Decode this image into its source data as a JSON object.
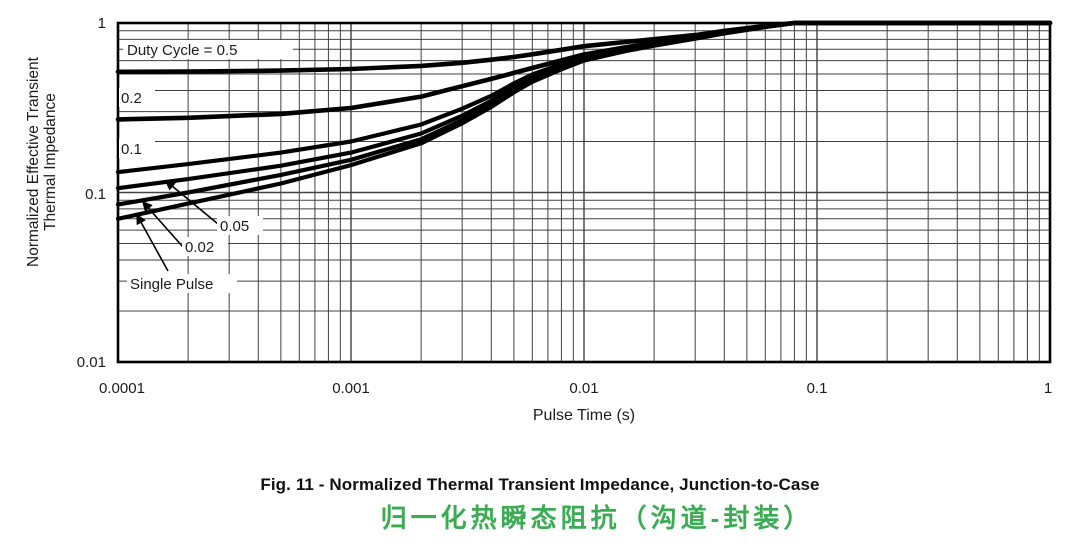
{
  "figure": {
    "caption_en": "Fig. 11 - Normalized Thermal Transient Impedance, Junction-to-Case",
    "caption_zh": "归一化热瞬态阻抗（沟道-封装）",
    "caption_zh_color": "#3BAC52"
  },
  "chart_data": {
    "type": "line",
    "title": "Normalized Thermal Transient Impedance, Junction-to-Case",
    "xlabel": "Pulse Time (s)",
    "ylabel": "Normalized Effective Transient Thermal Impedance",
    "ylabel_line1": "Normalized Effective Transient",
    "ylabel_line2": "Thermal Impedance",
    "x_scale": "log",
    "y_scale": "log",
    "xlim": [
      0.0001,
      1
    ],
    "ylim": [
      0.01,
      1
    ],
    "x_tick_labels": [
      "0.0001",
      "0.001",
      "0.01",
      "0.1",
      "1"
    ],
    "y_tick_labels": [
      "1",
      "0.1",
      "0.01"
    ],
    "grid": true,
    "grid_color": "#414141",
    "curve_color": "#000000",
    "series": [
      {
        "label": "Duty Cycle = 0.5",
        "duty_cycle": 0.5,
        "points": [
          [
            0.0001,
            0.515
          ],
          [
            0.0002,
            0.517
          ],
          [
            0.0005,
            0.524
          ],
          [
            0.001,
            0.535
          ],
          [
            0.002,
            0.558
          ],
          [
            0.003,
            0.582
          ],
          [
            0.004,
            0.607
          ],
          [
            0.005,
            0.63
          ],
          [
            0.006,
            0.654
          ],
          [
            0.008,
            0.695
          ],
          [
            0.01,
            0.73
          ],
          [
            0.015,
            0.772
          ],
          [
            0.02,
            0.802
          ],
          [
            0.03,
            0.848
          ],
          [
            0.04,
            0.898
          ],
          [
            0.06,
            0.962
          ],
          [
            0.08,
            1.0
          ],
          [
            1,
            1.0
          ]
        ]
      },
      {
        "label": "0.2",
        "duty_cycle": 0.2,
        "points": [
          [
            0.0001,
            0.27
          ],
          [
            0.0002,
            0.276
          ],
          [
            0.0005,
            0.291
          ],
          [
            0.001,
            0.315
          ],
          [
            0.002,
            0.368
          ],
          [
            0.003,
            0.424
          ],
          [
            0.004,
            0.468
          ],
          [
            0.005,
            0.508
          ],
          [
            0.006,
            0.543
          ],
          [
            0.008,
            0.602
          ],
          [
            0.01,
            0.652
          ],
          [
            0.015,
            0.718
          ],
          [
            0.02,
            0.762
          ],
          [
            0.03,
            0.826
          ],
          [
            0.04,
            0.882
          ],
          [
            0.06,
            0.955
          ],
          [
            0.08,
            1.0
          ],
          [
            1,
            1.0
          ]
        ]
      },
      {
        "label": "0.1",
        "duty_cycle": 0.1,
        "points": [
          [
            0.0001,
            0.132
          ],
          [
            0.0002,
            0.147
          ],
          [
            0.0005,
            0.172
          ],
          [
            0.001,
            0.2
          ],
          [
            0.002,
            0.252
          ],
          [
            0.003,
            0.312
          ],
          [
            0.004,
            0.372
          ],
          [
            0.005,
            0.44
          ],
          [
            0.006,
            0.497
          ],
          [
            0.008,
            0.572
          ],
          [
            0.01,
            0.632
          ],
          [
            0.015,
            0.705
          ],
          [
            0.02,
            0.752
          ],
          [
            0.03,
            0.82
          ],
          [
            0.04,
            0.878
          ],
          [
            0.06,
            0.952
          ],
          [
            0.08,
            1.0
          ],
          [
            1,
            1.0
          ]
        ]
      },
      {
        "label": "0.05",
        "duty_cycle": 0.05,
        "points": [
          [
            0.0001,
            0.106
          ],
          [
            0.0002,
            0.12
          ],
          [
            0.0005,
            0.144
          ],
          [
            0.001,
            0.172
          ],
          [
            0.002,
            0.223
          ],
          [
            0.003,
            0.284
          ],
          [
            0.004,
            0.348
          ],
          [
            0.005,
            0.418
          ],
          [
            0.006,
            0.478
          ],
          [
            0.008,
            0.557
          ],
          [
            0.01,
            0.62
          ],
          [
            0.015,
            0.697
          ],
          [
            0.02,
            0.746
          ],
          [
            0.03,
            0.816
          ],
          [
            0.04,
            0.874
          ],
          [
            0.06,
            0.95
          ],
          [
            0.08,
            1.0
          ],
          [
            1,
            1.0
          ]
        ]
      },
      {
        "label": "0.02",
        "duty_cycle": 0.02,
        "points": [
          [
            0.0001,
            0.085
          ],
          [
            0.0002,
            0.1
          ],
          [
            0.0005,
            0.127
          ],
          [
            0.001,
            0.156
          ],
          [
            0.002,
            0.206
          ],
          [
            0.003,
            0.267
          ],
          [
            0.004,
            0.331
          ],
          [
            0.005,
            0.402
          ],
          [
            0.006,
            0.463
          ],
          [
            0.008,
            0.545
          ],
          [
            0.01,
            0.61
          ],
          [
            0.015,
            0.69
          ],
          [
            0.02,
            0.74
          ],
          [
            0.03,
            0.812
          ],
          [
            0.04,
            0.872
          ],
          [
            0.06,
            0.948
          ],
          [
            0.08,
            1.0
          ],
          [
            1,
            1.0
          ]
        ]
      },
      {
        "label": "Single Pulse",
        "duty_cycle": null,
        "points": [
          [
            0.0001,
            0.07
          ],
          [
            0.0002,
            0.086
          ],
          [
            0.0005,
            0.113
          ],
          [
            0.001,
            0.145
          ],
          [
            0.002,
            0.195
          ],
          [
            0.003,
            0.256
          ],
          [
            0.004,
            0.32
          ],
          [
            0.005,
            0.39
          ],
          [
            0.006,
            0.45
          ],
          [
            0.008,
            0.533
          ],
          [
            0.01,
            0.6
          ],
          [
            0.015,
            0.682
          ],
          [
            0.02,
            0.735
          ],
          [
            0.03,
            0.808
          ],
          [
            0.04,
            0.868
          ],
          [
            0.06,
            0.946
          ],
          [
            0.08,
            1.0
          ],
          [
            1,
            1.0
          ]
        ]
      }
    ]
  }
}
